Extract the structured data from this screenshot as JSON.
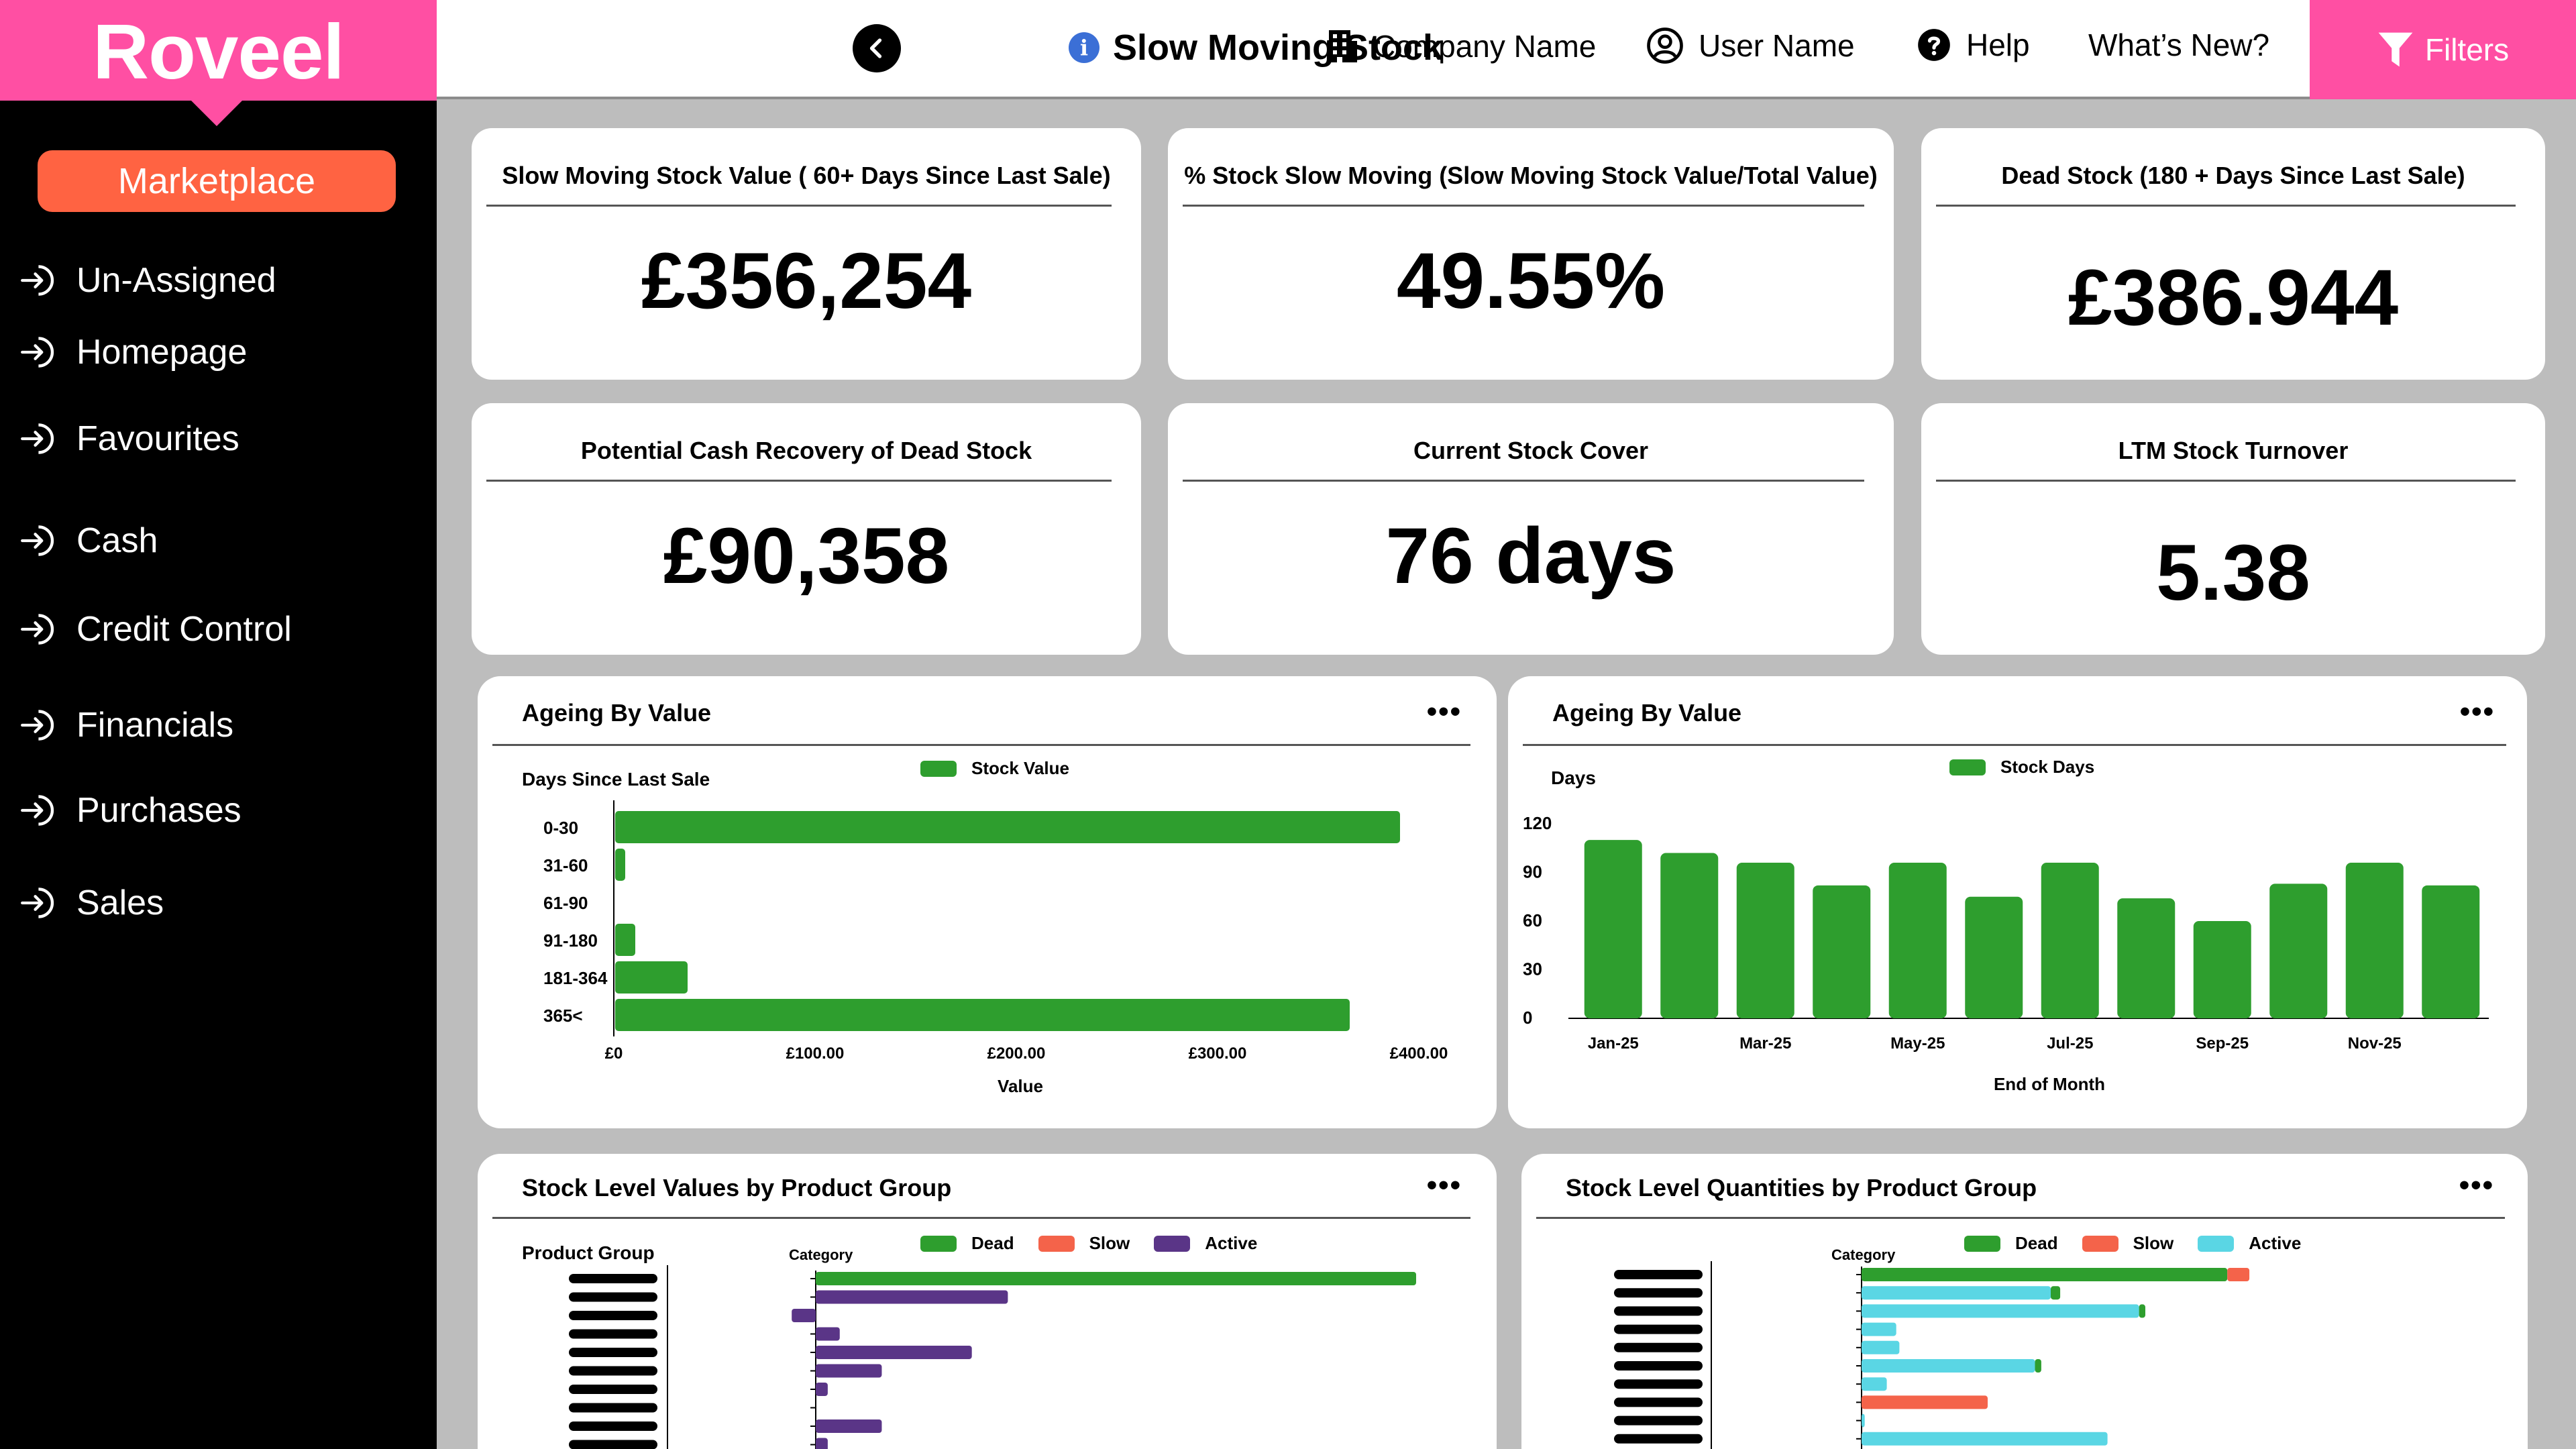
{
  "app": {
    "logo": "Roveel"
  },
  "sidebar": {
    "marketplace": "Marketplace",
    "items": [
      {
        "label": "Un-Assigned"
      },
      {
        "label": "Homepage"
      },
      {
        "label": "Favourites"
      },
      {
        "label": "Cash"
      },
      {
        "label": "Credit Control"
      },
      {
        "label": "Financials"
      },
      {
        "label": "Purchases"
      },
      {
        "label": "Sales"
      }
    ]
  },
  "header": {
    "info_glyph": "i",
    "title": "Slow Moving Stock",
    "company": "Company Name",
    "user": "User Name",
    "help": "Help",
    "whats_new": "What’s New?",
    "filters": "Filters"
  },
  "kpis": [
    {
      "label": "Slow Moving Stock Value ( 60+ Days Since Last Sale)",
      "value": "£356,254"
    },
    {
      "label": "% Stock Slow Moving (Slow Moving Stock Value/Total Value)",
      "value": "49.55%"
    },
    {
      "label": "Dead Stock (180 + Days Since Last Sale)",
      "value": "£386.944"
    },
    {
      "label": "Potential Cash Recovery of Dead Stock",
      "value": "£90,358"
    },
    {
      "label": "Current Stock Cover",
      "value": "76 days"
    },
    {
      "label": "LTM Stock Turnover",
      "value": "5.38"
    }
  ],
  "panels": {
    "menu_glyph": "•••",
    "ageing_value": {
      "title": "Ageing By Value",
      "y_axis_title": "Days Since Last Sale",
      "legend": "Stock Value"
    },
    "ageing_days": {
      "title": "Ageing By Value",
      "y_axis_title": "Days",
      "legend": "Stock Days"
    },
    "stock_values": {
      "title": "Stock Level Values by Product Group",
      "left_label": "Product Group",
      "category_label": "Category"
    },
    "stock_quantities": {
      "title": "Stock Level Quantities by Product Group",
      "category_label": "Category"
    }
  },
  "colors": {
    "green": "#2e9e2e",
    "slow": "#f4634a",
    "active": "#5a3587",
    "active_qty": "#5ad6e4",
    "brand": "#ff4fa3",
    "accent": "#ff6342"
  },
  "chart_data": [
    {
      "type": "bar",
      "orientation": "horizontal",
      "title": "Ageing By Value",
      "ylabel": "Days Since Last Sale",
      "xlabel": "Value",
      "categories": [
        "0-30",
        "31-60",
        "61-90",
        "91-180",
        "181-364",
        "365<"
      ],
      "series": [
        {
          "name": "Stock Value",
          "values": [
            390,
            5,
            0,
            10,
            36,
            365
          ]
        }
      ],
      "xticks": [
        "£0",
        "£100.00",
        "£200.00",
        "£300.00",
        "£400.00"
      ],
      "xlim": [
        0,
        400
      ]
    },
    {
      "type": "bar",
      "title": "Ageing By Value",
      "ylabel": "Days",
      "xlabel": "End of Month",
      "categories": [
        "Jan-25",
        "Feb-25",
        "Mar-25",
        "Apr-25",
        "May-25",
        "Jun-25",
        "Jul-25",
        "Aug-25",
        "Sep-25",
        "Oct-25",
        "Nov-25",
        "Dec-25"
      ],
      "xticks": [
        "Jan-25",
        "Mar-25",
        "May-25",
        "Jul-25",
        "Sep-25",
        "Nov-25"
      ],
      "yticks": [
        "0",
        "30",
        "60",
        "90",
        "120"
      ],
      "series": [
        {
          "name": "Stock Days",
          "values": [
            110,
            102,
            96,
            82,
            96,
            75,
            96,
            74,
            60,
            83,
            96,
            82
          ]
        }
      ],
      "ylim": [
        0,
        120
      ]
    },
    {
      "type": "bar",
      "orientation": "horizontal",
      "stacked": true,
      "title": "Stock Level Values by Product Group",
      "legend": [
        "Dead",
        "Slow",
        "Active"
      ],
      "series": [
        {
          "name": "Dead",
          "values": [
            100,
            0,
            0,
            0,
            0,
            0,
            0,
            0,
            0,
            0
          ]
        },
        {
          "name": "Slow",
          "values": [
            0,
            0,
            0,
            0,
            0,
            0,
            0,
            0,
            0,
            0
          ]
        },
        {
          "name": "Active",
          "values": [
            0,
            32,
            -4,
            4,
            26,
            11,
            2,
            0,
            11,
            2
          ]
        }
      ]
    },
    {
      "type": "bar",
      "orientation": "horizontal",
      "stacked": true,
      "title": "Stock Level Quantities by Product Group",
      "legend": [
        "Dead",
        "Slow",
        "Active"
      ],
      "series": [
        {
          "name": "Active",
          "values": [
            0,
            60,
            88,
            11,
            12,
            55,
            8,
            0,
            1,
            78
          ]
        },
        {
          "name": "Dead",
          "values": [
            116,
            3,
            2,
            0,
            0,
            2,
            0,
            0,
            0,
            0
          ]
        },
        {
          "name": "Slow",
          "values": [
            7,
            0,
            0,
            0,
            0,
            0,
            0,
            40,
            0,
            0
          ]
        }
      ]
    }
  ]
}
